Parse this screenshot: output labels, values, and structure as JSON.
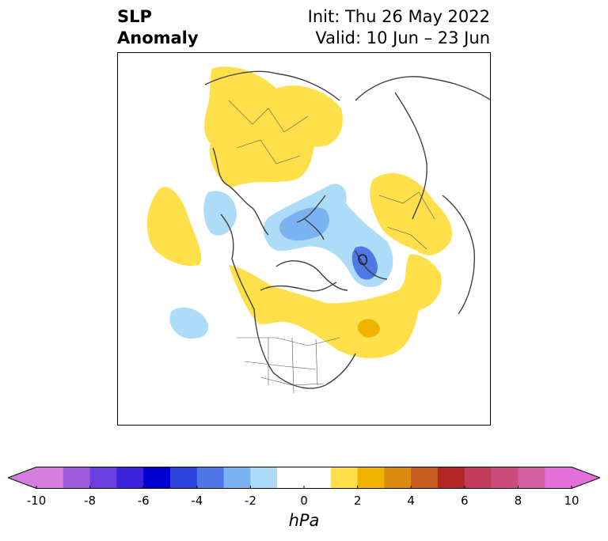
{
  "title": {
    "line1": "SLP",
    "line2": "Anomaly"
  },
  "subtitle": {
    "init": "Init: Thu 26 May 2022",
    "valid": "Valid: 10 Jun – 23 Jun"
  },
  "colorbar": {
    "unit": "hPa",
    "min": -10,
    "max": 10,
    "extend": "both",
    "bins": [
      {
        "from": -10,
        "to": -9,
        "color": "#d47ee0"
      },
      {
        "from": -9,
        "to": -8,
        "color": "#a05ce0"
      },
      {
        "from": -8,
        "to": -7,
        "color": "#6a3ee0"
      },
      {
        "from": -7,
        "to": -6,
        "color": "#3c22dc"
      },
      {
        "from": -6,
        "to": -5,
        "color": "#0000d2"
      },
      {
        "from": -5,
        "to": -4,
        "color": "#2a44dc"
      },
      {
        "from": -4,
        "to": -3,
        "color": "#4f78e6"
      },
      {
        "from": -3,
        "to": -2,
        "color": "#7ab2f2"
      },
      {
        "from": -2,
        "to": -1,
        "color": "#acdcf8"
      },
      {
        "from": -1,
        "to": 1,
        "color": "#ffffff"
      },
      {
        "from": 1,
        "to": 2,
        "color": "#ffe04a"
      },
      {
        "from": 2,
        "to": 3,
        "color": "#f0b400"
      },
      {
        "from": 3,
        "to": 4,
        "color": "#dc8a10"
      },
      {
        "from": 4,
        "to": 5,
        "color": "#c85c1c"
      },
      {
        "from": 5,
        "to": 6,
        "color": "#b42626"
      },
      {
        "from": 6,
        "to": 7,
        "color": "#c43c5c"
      },
      {
        "from": 7,
        "to": 8,
        "color": "#cc4c7c"
      },
      {
        "from": 8,
        "to": 9,
        "color": "#d460a4"
      },
      {
        "from": 9,
        "to": 10,
        "color": "#e270d8"
      }
    ],
    "ticks": [
      "-10",
      "-8",
      "-6",
      "-4",
      "-2",
      "0",
      "2",
      "4",
      "6",
      "8",
      "10"
    ],
    "extend_low_color": "#d47ee0",
    "extend_high_color": "#e270d8"
  },
  "map": {
    "projection": "polar stereographic, North Pole",
    "anomaly_regions": [
      {
        "name": "positive-europe-scandinavia",
        "level": "1-2 hPa",
        "color": "#ffe04a"
      },
      {
        "name": "positive-alaska-pacific",
        "level": "1-2 hPa",
        "color": "#ffe04a"
      },
      {
        "name": "positive-canada-atlantic",
        "level": "1-2 hPa",
        "color": "#ffe04a"
      },
      {
        "name": "positive-hudson-bay-core",
        "level": "2-3 hPa",
        "color": "#f0b400"
      },
      {
        "name": "positive-east-asia",
        "level": "1-2 hPa",
        "color": "#ffe04a"
      },
      {
        "name": "negative-arctic",
        "level": "-3 to -1 hPa",
        "color": "#7ab2f2"
      },
      {
        "name": "negative-siberia-low",
        "level": "-4 to -2 hPa",
        "color": "#4f78e6"
      },
      {
        "name": "negative-atlantic",
        "level": "-2 to -1 hPa",
        "color": "#acdcf8"
      },
      {
        "name": "negative-pacific",
        "level": "-2 to -1 hPa",
        "color": "#acdcf8"
      }
    ]
  }
}
